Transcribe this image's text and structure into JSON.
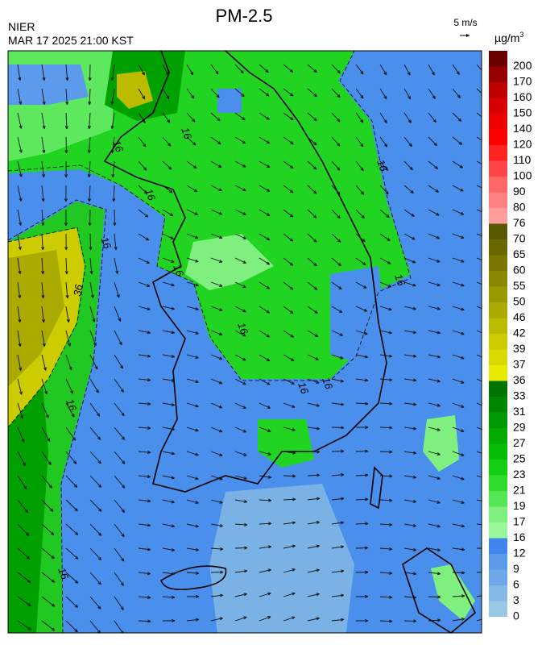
{
  "title": "PM-2.5",
  "agency": "NIER",
  "timestamp": "MAR 17 2025 21:00 KST",
  "wind_scale": "5 m/s",
  "unit": "µg/m",
  "unit_superscript": "3",
  "contour_labels": [
    "16",
    "16",
    "16",
    "16",
    "16",
    "16",
    "16",
    "16",
    "16",
    "36",
    "16",
    "16",
    "16"
  ],
  "colorbar": {
    "ticks": [
      0,
      3,
      6,
      9,
      12,
      16,
      17,
      19,
      21,
      23,
      25,
      27,
      29,
      31,
      33,
      36,
      37,
      39,
      42,
      46,
      50,
      55,
      60,
      65,
      70,
      76,
      80,
      90,
      100,
      110,
      120,
      140,
      150,
      160,
      170,
      200
    ],
    "colors": [
      "#97c8e6",
      "#84b9e8",
      "#6fa8ea",
      "#5c9aec",
      "#3f87ee",
      "#99f999",
      "#7ff07f",
      "#55e655",
      "#2ddc2d",
      "#12cf12",
      "#04bd04",
      "#02ab02",
      "#019901",
      "#008700",
      "#007400",
      "#eaea00",
      "#d9d900",
      "#cccc00",
      "#bbbb00",
      "#aaaa00",
      "#999900",
      "#888800",
      "#777700",
      "#686800",
      "#585800",
      "#ff9d9d",
      "#ff8080",
      "#ff6666",
      "#ff4646",
      "#ff2424",
      "#ff0000",
      "#ec0000",
      "#d80000",
      "#bc0000",
      "#980000",
      "#6a0000"
    ]
  }
}
